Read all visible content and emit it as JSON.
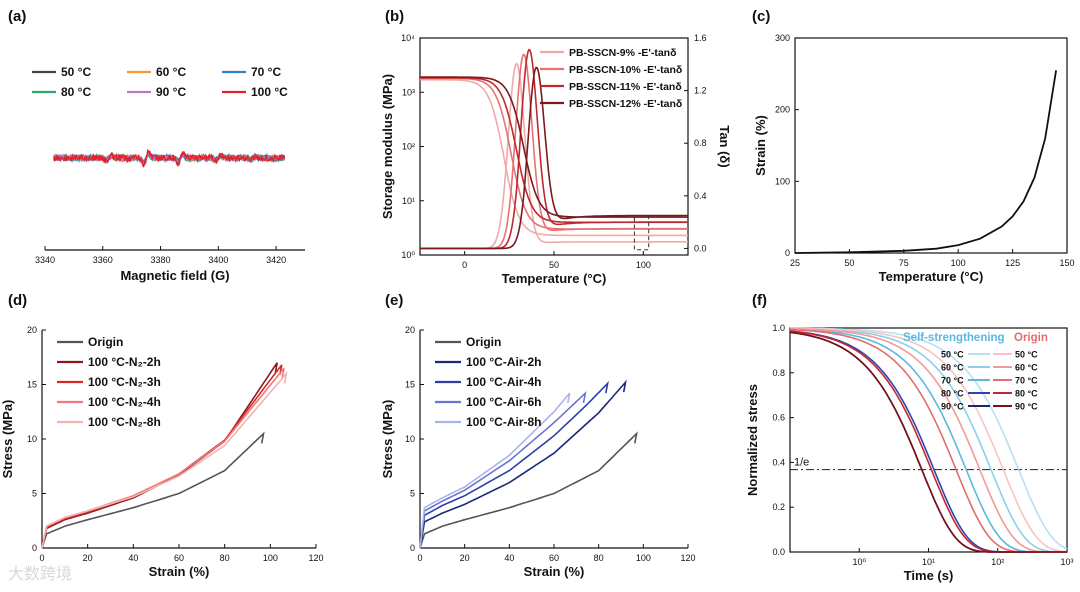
{
  "chart_data": [
    {
      "panel": "(a)",
      "type": "line",
      "xlabel": "Magnetic field (G)",
      "xlim": [
        3340,
        3430
      ],
      "xticks": [
        3340,
        3360,
        3380,
        3400,
        3420
      ],
      "series": [
        {
          "name": "50 °C",
          "color": "#444444",
          "peaks": [
            [
              3362,
              0.8
            ],
            [
              3375,
              1.5
            ],
            [
              3387,
              1.3
            ],
            [
              3400,
              0.7
            ],
            [
              3412,
              0.4
            ]
          ]
        },
        {
          "name": "60 °C",
          "color": "#f39c32",
          "peaks": [
            [
              3362,
              0.8
            ],
            [
              3375,
              1.6
            ],
            [
              3387,
              1.4
            ],
            [
              3400,
              0.7
            ],
            [
              3412,
              0.4
            ]
          ]
        },
        {
          "name": "70 °C",
          "color": "#2f80c8",
          "peaks": [
            [
              3362,
              0.9
            ],
            [
              3375,
              1.7
            ],
            [
              3387,
              1.5
            ],
            [
              3400,
              0.8
            ],
            [
              3412,
              0.4
            ]
          ]
        },
        {
          "name": "80 °C",
          "color": "#2fa86a",
          "peaks": [
            [
              3362,
              0.9
            ],
            [
              3375,
              1.7
            ],
            [
              3387,
              1.5
            ],
            [
              3400,
              0.8
            ],
            [
              3412,
              0.4
            ]
          ]
        },
        {
          "name": "90 °C",
          "color": "#b57acb",
          "peaks": [
            [
              3362,
              1.0
            ],
            [
              3375,
              1.8
            ],
            [
              3387,
              1.6
            ],
            [
              3400,
              0.9
            ],
            [
              3412,
              0.5
            ]
          ]
        },
        {
          "name": "100 °C",
          "color": "#e8202a",
          "peaks": [
            [
              3362,
              1.1
            ],
            [
              3375,
              2.3
            ],
            [
              3387,
              2.2
            ],
            [
              3400,
              1.0
            ],
            [
              3412,
              0.6
            ]
          ]
        }
      ]
    },
    {
      "panel": "(b)",
      "type": "line",
      "xlabel": "Temperature (°C)",
      "ylabel": "Storage modulus (MPa)",
      "y2label": "Tan (δ)",
      "xlim": [
        -25,
        125
      ],
      "xticks": [
        0,
        50,
        100
      ],
      "ylog": true,
      "ylim": [
        1,
        10000
      ],
      "yticks": [
        "10⁰",
        "10¹",
        "10²",
        "10³",
        "10⁴"
      ],
      "y2lim": [
        -0.05,
        1.6
      ],
      "y2ticks": [
        0.0,
        0.4,
        0.8,
        1.2,
        1.6
      ],
      "series": [
        {
          "name": "PB-SSCN-9%   -E'-tanδ",
          "color": "#f1a9a9",
          "Tg": 22,
          "tanpeak": 1.38,
          "E0": 1700,
          "E1": 2.3,
          "tanbase": 0.05
        },
        {
          "name": "PB-SSCN-10%  -E'-tanδ",
          "color": "#e57373",
          "Tg": 26,
          "tanpeak": 1.4,
          "E0": 1800,
          "E1": 3.0,
          "tanbase": 0.15
        },
        {
          "name": "PB-SSCN-11%  -E'-tanδ",
          "color": "#c0282d",
          "Tg": 29,
          "tanpeak": 1.41,
          "E0": 1850,
          "E1": 4.0,
          "tanbase": 0.2
        },
        {
          "name": "PB-SSCN-12%  -E'-tanδ",
          "color": "#7a1a1f",
          "Tg": 33,
          "tanpeak": 1.25,
          "E0": 1900,
          "E1": 5.0,
          "tanbase": 0.25
        }
      ]
    },
    {
      "panel": "(c)",
      "type": "line",
      "xlabel": "Temperature (°C)",
      "ylabel": "Strain (%)",
      "xlim": [
        25,
        150
      ],
      "ylim": [
        0,
        300
      ],
      "xticks": [
        25,
        50,
        75,
        100,
        125,
        150
      ],
      "yticks": [
        0,
        100,
        200,
        300
      ],
      "series": [
        {
          "name": "",
          "color": "#111111",
          "x": [
            25,
            50,
            75,
            90,
            100,
            110,
            120,
            125,
            130,
            135,
            140,
            145
          ],
          "y": [
            0,
            1,
            3,
            6,
            11,
            20,
            37,
            51,
            72,
            105,
            160,
            255
          ]
        }
      ]
    },
    {
      "panel": "(d)",
      "type": "line",
      "xlabel": "Strain (%)",
      "ylabel": "Stress (MPa)",
      "xlim": [
        0,
        120
      ],
      "ylim": [
        0,
        20
      ],
      "xticks": [
        0,
        20,
        40,
        60,
        80,
        100,
        120
      ],
      "yticks": [
        0,
        5,
        10,
        15,
        20
      ],
      "series": [
        {
          "name": "Origin",
          "color": "#555555",
          "x": [
            0,
            2,
            10,
            20,
            40,
            60,
            80,
            97
          ],
          "y": [
            0,
            1.3,
            2.0,
            2.6,
            3.7,
            5.0,
            7.1,
            10.5
          ]
        },
        {
          "name": "100 °C-N₂-2h",
          "color": "#8b1a1f",
          "x": [
            0,
            2,
            10,
            20,
            40,
            60,
            80,
            103
          ],
          "y": [
            0,
            1.8,
            2.6,
            3.2,
            4.6,
            6.7,
            9.8,
            17.0
          ]
        },
        {
          "name": "100 °C-N₂-3h",
          "color": "#d62a2a",
          "x": [
            0,
            2,
            10,
            20,
            40,
            60,
            80,
            105
          ],
          "y": [
            0,
            1.9,
            2.7,
            3.3,
            4.7,
            6.8,
            9.9,
            16.8
          ]
        },
        {
          "name": "100 °C-N₂-4h",
          "color": "#ec7a7a",
          "x": [
            0,
            2,
            10,
            20,
            40,
            60,
            80,
            106
          ],
          "y": [
            0,
            2.0,
            2.8,
            3.4,
            4.8,
            6.8,
            9.8,
            16.5
          ]
        },
        {
          "name": "100 °C-N₂-8h",
          "color": "#f4b3b3",
          "x": [
            0,
            2,
            10,
            20,
            40,
            60,
            80,
            107
          ],
          "y": [
            0,
            2.0,
            2.8,
            3.4,
            4.7,
            6.6,
            9.4,
            16.0
          ]
        }
      ]
    },
    {
      "panel": "(e)",
      "type": "line",
      "xlabel": "Strain (%)",
      "ylabel": "Stress (MPa)",
      "xlim": [
        0,
        120
      ],
      "ylim": [
        0,
        20
      ],
      "xticks": [
        0,
        20,
        40,
        60,
        80,
        100,
        120
      ],
      "yticks": [
        0,
        5,
        10,
        15,
        20
      ],
      "series": [
        {
          "name": "Origin",
          "color": "#555555",
          "x": [
            0,
            2,
            10,
            20,
            40,
            60,
            80,
            97
          ],
          "y": [
            0,
            1.3,
            2.0,
            2.6,
            3.7,
            5.0,
            7.1,
            10.5
          ]
        },
        {
          "name": "100 °C-Air-2h",
          "color": "#1a2a7a",
          "x": [
            0,
            2,
            10,
            20,
            40,
            60,
            80,
            92
          ],
          "y": [
            0,
            2.4,
            3.2,
            4.0,
            6.0,
            8.7,
            12.4,
            15.2
          ]
        },
        {
          "name": "100 °C-Air-4h",
          "color": "#2d3fa8",
          "x": [
            0,
            2,
            10,
            20,
            40,
            60,
            75,
            84
          ],
          "y": [
            0,
            3.0,
            3.9,
            4.8,
            7.1,
            10.3,
            13.2,
            15.1
          ]
        },
        {
          "name": "100 °C-Air-6h",
          "color": "#6876d2",
          "x": [
            0,
            2,
            10,
            20,
            40,
            60,
            74
          ],
          "y": [
            0,
            3.4,
            4.3,
            5.3,
            8.0,
            11.5,
            14.2
          ]
        },
        {
          "name": "100 °C-Air-8h",
          "color": "#a9b3ec",
          "x": [
            0,
            2,
            10,
            20,
            40,
            60,
            67
          ],
          "y": [
            0,
            3.7,
            4.6,
            5.6,
            8.5,
            12.5,
            14.2
          ]
        }
      ]
    },
    {
      "panel": "(f)",
      "type": "line",
      "xlabel": "Time (s)",
      "ylabel": "Normalized stress",
      "xlog": true,
      "xlim": [
        0.1,
        1000
      ],
      "xticks": [
        "10⁰",
        "10¹",
        "10²",
        "10³"
      ],
      "ylim": [
        0,
        1.0
      ],
      "yticks": [
        0.0,
        0.2,
        0.4,
        0.6,
        0.8,
        1.0
      ],
      "ref_line": {
        "label": "1/e",
        "y": 0.368
      },
      "group_labels": {
        "self": "Self-strengthening",
        "origin": "Origin"
      },
      "series": [
        {
          "group": "self",
          "name": "50 °C",
          "color": "#b7e0f2",
          "tau": 200
        },
        {
          "group": "self",
          "name": "60 °C",
          "color": "#8ccfec",
          "tau": 80
        },
        {
          "group": "self",
          "name": "70 °C",
          "color": "#5cb8e0",
          "tau": 35
        },
        {
          "group": "self",
          "name": "80 °C",
          "color": "#2b46b0",
          "tau": 12
        },
        {
          "group": "self",
          "name": "90 °C",
          "color": "#1b2766",
          "tau": 8
        },
        {
          "group": "origin",
          "name": "50 °C",
          "color": "#f7c3c3",
          "tau": 120
        },
        {
          "group": "origin",
          "name": "60 °C",
          "color": "#f19a9a",
          "tau": 55
        },
        {
          "group": "origin",
          "name": "70 °C",
          "color": "#e26d6d",
          "tau": 25
        },
        {
          "group": "origin",
          "name": "80 °C",
          "color": "#c9252b",
          "tau": 11
        },
        {
          "group": "origin",
          "name": "90 °C",
          "color": "#7a1014",
          "tau": 8
        }
      ]
    }
  ],
  "panel_labels": [
    "(a)",
    "(b)",
    "(c)",
    "(d)",
    "(e)",
    "(f)"
  ],
  "watermark": "大数跨境"
}
